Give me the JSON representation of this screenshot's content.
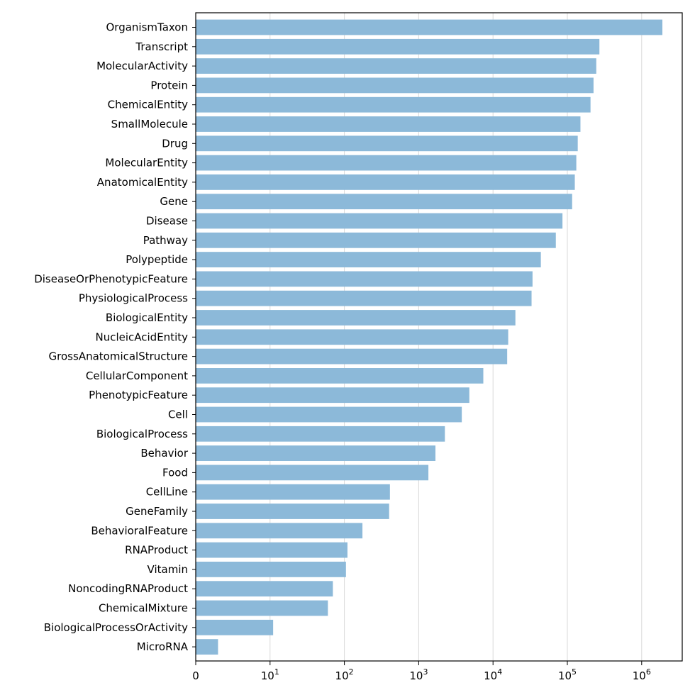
{
  "chart_data": {
    "type": "bar",
    "orientation": "horizontal",
    "x_scale": "symlog",
    "bar_color": "#8cb9d9",
    "grid": "vertical",
    "categories": [
      "OrganismTaxon",
      "Transcript",
      "MolecularActivity",
      "Protein",
      "ChemicalEntity",
      "SmallMolecule",
      "Drug",
      "MolecularEntity",
      "AnatomicalEntity",
      "Gene",
      "Disease",
      "Pathway",
      "Polypeptide",
      "DiseaseOrPhenotypicFeature",
      "PhysiologicalProcess",
      "BiologicalEntity",
      "NucleicAcidEntity",
      "GrossAnatomicalStructure",
      "CellularComponent",
      "PhenotypicFeature",
      "Cell",
      "BiologicalProcess",
      "Behavior",
      "Food",
      "CellLine",
      "GeneFamily",
      "BehavioralFeature",
      "RNAProduct",
      "Vitamin",
      "NoncodingRNAProduct",
      "ChemicalMixture",
      "BiologicalProcessOrActivity",
      "MicroRNA"
    ],
    "values": [
      1900000,
      270000,
      245000,
      225000,
      205000,
      150000,
      138000,
      132000,
      126000,
      116000,
      86000,
      70000,
      44000,
      34000,
      33000,
      20000,
      16000,
      15500,
      7400,
      4800,
      3800,
      2250,
      1680,
      1350,
      410,
      400,
      175,
      110,
      105,
      70,
      60,
      11,
      3
    ],
    "xlim": [
      0,
      4000000
    ],
    "ticks": [
      {
        "value": 0,
        "base": "0",
        "exp": ""
      },
      {
        "value": 10,
        "base": "10",
        "exp": "1"
      },
      {
        "value": 100,
        "base": "10",
        "exp": "2"
      },
      {
        "value": 1000,
        "base": "10",
        "exp": "3"
      },
      {
        "value": 10000,
        "base": "10",
        "exp": "4"
      },
      {
        "value": 100000,
        "base": "10",
        "exp": "5"
      },
      {
        "value": 1000000,
        "base": "10",
        "exp": "6"
      }
    ]
  }
}
